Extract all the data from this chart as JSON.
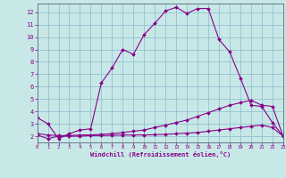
{
  "bg_color": "#c8e8e8",
  "line_color": "#880088",
  "grid_color": "#88bbcc",
  "xlim": [
    0,
    23
  ],
  "ylim": [
    1.5,
    12.7
  ],
  "yticks": [
    2,
    3,
    4,
    5,
    6,
    7,
    8,
    9,
    10,
    11,
    12
  ],
  "xticks": [
    0,
    1,
    2,
    3,
    4,
    5,
    6,
    7,
    8,
    9,
    10,
    11,
    12,
    13,
    14,
    15,
    16,
    17,
    18,
    19,
    20,
    21,
    22,
    23
  ],
  "xlabel": "Windchill (Refroidissement éolien,°C)",
  "curve1_x": [
    0,
    1,
    2,
    3,
    4,
    5,
    6,
    7,
    8,
    9,
    10,
    11,
    12,
    13,
    14,
    15,
    16,
    17,
    18,
    19,
    20,
    21,
    22,
    23
  ],
  "curve1_y": [
    3.5,
    3.0,
    1.8,
    2.2,
    2.5,
    2.6,
    6.3,
    7.5,
    9.0,
    8.6,
    10.2,
    11.1,
    12.1,
    12.4,
    11.9,
    12.3,
    12.3,
    9.8,
    8.8,
    6.7,
    4.5,
    4.4,
    3.1,
    2.0
  ],
  "curve2_x": [
    0,
    1,
    2,
    3,
    4,
    5,
    6,
    7,
    8,
    9,
    10,
    11,
    12,
    13,
    14,
    15,
    16,
    17,
    18,
    19,
    20,
    21,
    22,
    23
  ],
  "curve2_y": [
    2.2,
    2.1,
    2.05,
    2.05,
    2.1,
    2.1,
    2.15,
    2.2,
    2.3,
    2.4,
    2.5,
    2.7,
    2.9,
    3.1,
    3.3,
    3.6,
    3.9,
    4.2,
    4.5,
    4.7,
    4.9,
    4.5,
    4.4,
    2.0
  ],
  "curve3_x": [
    0,
    1,
    2,
    3,
    4,
    5,
    6,
    7,
    8,
    9,
    10,
    11,
    12,
    13,
    14,
    15,
    16,
    17,
    18,
    19,
    20,
    21,
    22,
    23
  ],
  "curve3_y": [
    2.1,
    1.8,
    2.0,
    2.0,
    2.0,
    2.05,
    2.05,
    2.07,
    2.1,
    2.1,
    2.1,
    2.12,
    2.15,
    2.2,
    2.25,
    2.3,
    2.4,
    2.5,
    2.6,
    2.7,
    2.8,
    2.9,
    2.7,
    2.0
  ]
}
